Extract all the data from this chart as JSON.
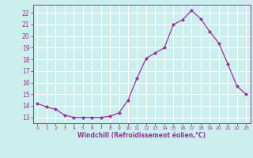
{
  "x": [
    0,
    1,
    2,
    3,
    4,
    5,
    6,
    7,
    8,
    9,
    10,
    11,
    12,
    13,
    14,
    15,
    16,
    17,
    18,
    19,
    20,
    21,
    22,
    23
  ],
  "y": [
    14.2,
    13.9,
    13.7,
    13.2,
    13.0,
    13.0,
    13.0,
    13.0,
    13.1,
    13.4,
    14.5,
    16.4,
    18.1,
    18.55,
    19.0,
    21.0,
    21.4,
    22.2,
    21.5,
    20.4,
    19.4,
    17.6,
    15.7,
    15.0
  ],
  "line_color": "#993399",
  "marker": "D",
  "marker_size": 2.0,
  "bg_color": "#cceeed",
  "grid_color": "#aadddd",
  "xlabel": "Windchill (Refroidissement éolien,°C)",
  "xlabel_color": "#993399",
  "tick_color": "#993399",
  "ylim": [
    12.5,
    22.7
  ],
  "xlim": [
    -0.5,
    23.5
  ],
  "yticks": [
    13,
    14,
    15,
    16,
    17,
    18,
    19,
    20,
    21,
    22
  ],
  "xticks": [
    0,
    1,
    2,
    3,
    4,
    5,
    6,
    7,
    8,
    9,
    10,
    11,
    12,
    13,
    14,
    15,
    16,
    17,
    18,
    19,
    20,
    21,
    22,
    23
  ],
  "figsize": [
    3.2,
    2.0
  ],
  "dpi": 100
}
